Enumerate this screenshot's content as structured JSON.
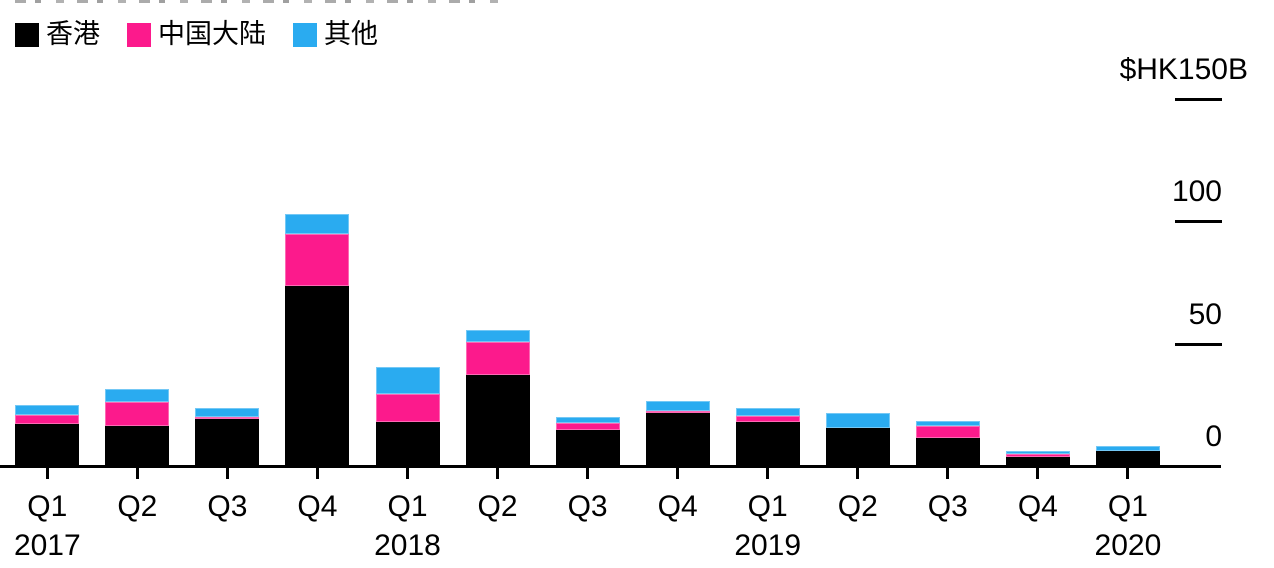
{
  "chart_data": {
    "type": "bar",
    "stacked": true,
    "unit_note": "values in HK$ billions, read from axis",
    "categories": [
      "Q1",
      "Q2",
      "Q3",
      "Q4",
      "Q1",
      "Q2",
      "Q3",
      "Q4",
      "Q1",
      "Q2",
      "Q3",
      "Q4",
      "Q1"
    ],
    "year_labels": [
      {
        "text": "2017",
        "index": 0
      },
      {
        "text": "2018",
        "index": 4
      },
      {
        "text": "2019",
        "index": 8
      },
      {
        "text": "2020",
        "index": 12
      }
    ],
    "series": [
      {
        "name": "香港",
        "color": "#000000",
        "values": [
          17,
          16.5,
          19,
          73.5,
          18,
          37,
          14.5,
          21.5,
          18,
          15.5,
          11.5,
          3.5,
          6
        ]
      },
      {
        "name": "中国大陆",
        "color": "#fc1a8c",
        "values": [
          4,
          9.5,
          1,
          21,
          11.5,
          13.5,
          3,
          1,
          2.5,
          0,
          5,
          1.5,
          0
        ]
      },
      {
        "name": "其他",
        "color": "#2aabf0",
        "values": [
          4,
          5.5,
          3.5,
          8.5,
          11,
          5,
          2.5,
          4,
          3,
          6,
          2,
          1,
          2
        ]
      }
    ],
    "y_axis": {
      "max": 150,
      "ticks": [
        {
          "label": "$HK150B",
          "value": 150,
          "tick": true,
          "unit_label": true
        },
        {
          "label": "100",
          "value": 100,
          "tick": true,
          "unit_label": false
        },
        {
          "label": "50",
          "value": 50,
          "tick": true,
          "unit_label": false
        },
        {
          "label": "0",
          "value": 0,
          "tick": false,
          "unit_label": false
        }
      ]
    },
    "legend": [
      {
        "label": "香港",
        "color": "#000000"
      },
      {
        "label": "中国大陆",
        "color": "#fc1a8c"
      },
      {
        "label": "其他",
        "color": "#2aabf0"
      }
    ],
    "colors": {
      "hong_kong": "#000000",
      "mainland_china": "#fc1a8c",
      "other": "#2aabf0",
      "axis": "#000000",
      "background": "#ffffff"
    }
  }
}
